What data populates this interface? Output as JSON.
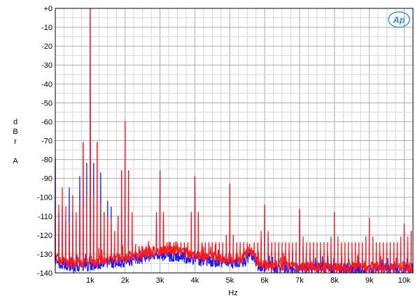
{
  "chart_data": {
    "type": "line",
    "title": "",
    "xlabel": "Hz",
    "ylabel_letters": [
      "d",
      "B",
      "r",
      "",
      "A"
    ],
    "xlim": [
      0,
      10250
    ],
    "ylim": [
      -140,
      0
    ],
    "grid": true,
    "legend": "none",
    "logo_text": "Ap",
    "y_ticks": [
      {
        "value": 0,
        "label": "+0"
      },
      {
        "value": -10,
        "label": "-10"
      },
      {
        "value": -20,
        "label": "-20"
      },
      {
        "value": -30,
        "label": "-30"
      },
      {
        "value": -40,
        "label": "-40"
      },
      {
        "value": -50,
        "label": "-50"
      },
      {
        "value": -60,
        "label": "-60"
      },
      {
        "value": -70,
        "label": "-70"
      },
      {
        "value": -80,
        "label": "-80"
      },
      {
        "value": -90,
        "label": "-90"
      },
      {
        "value": -100,
        "label": "-100"
      },
      {
        "value": -110,
        "label": "-110"
      },
      {
        "value": -120,
        "label": "-120"
      },
      {
        "value": -130,
        "label": "-130"
      },
      {
        "value": -140,
        "label": "-140"
      }
    ],
    "x_ticks": [
      {
        "value": 1000,
        "label": "1k"
      },
      {
        "value": 2000,
        "label": "2k"
      },
      {
        "value": 3000,
        "label": "3k"
      },
      {
        "value": 4000,
        "label": "4k"
      },
      {
        "value": 5000,
        "label": "5k"
      },
      {
        "value": 6000,
        "label": "6k"
      },
      {
        "value": 7000,
        "label": "7k"
      },
      {
        "value": 8000,
        "label": "8k"
      },
      {
        "value": 9000,
        "label": "9k"
      },
      {
        "value": 10000,
        "label": "10k"
      }
    ],
    "series": [
      {
        "color": "#1a1aff",
        "floor": [
          [
            0,
            -134
          ],
          [
            300,
            -136
          ],
          [
            600,
            -137
          ],
          [
            1000,
            -136
          ],
          [
            1500,
            -135
          ],
          [
            2000,
            -134
          ],
          [
            2500,
            -132
          ],
          [
            3000,
            -131
          ],
          [
            3500,
            -131
          ],
          [
            4000,
            -133
          ],
          [
            4500,
            -134
          ],
          [
            5000,
            -135
          ],
          [
            5400,
            -135
          ],
          [
            5600,
            -129
          ],
          [
            5800,
            -136
          ],
          [
            6000,
            -137
          ],
          [
            7000,
            -138
          ],
          [
            8000,
            -138
          ],
          [
            9000,
            -138
          ],
          [
            10250,
            -138
          ]
        ],
        "peaks": [
          [
            0,
            -80
          ],
          [
            100,
            -108
          ],
          [
            200,
            -105
          ],
          [
            300,
            -112
          ],
          [
            400,
            -95
          ],
          [
            500,
            -108
          ],
          [
            600,
            -112
          ],
          [
            700,
            -89
          ],
          [
            800,
            -71
          ],
          [
            900,
            -82
          ],
          [
            1000,
            0
          ],
          [
            1100,
            -82
          ],
          [
            1200,
            -71
          ],
          [
            1300,
            -87
          ],
          [
            1400,
            -108
          ],
          [
            1500,
            -102
          ],
          [
            1600,
            -105
          ],
          [
            1700,
            -122
          ],
          [
            1800,
            -110
          ],
          [
            1900,
            -86
          ],
          [
            2000,
            -60
          ],
          [
            2100,
            -86
          ],
          [
            2200,
            -110
          ],
          [
            2300,
            -125
          ],
          [
            2400,
            -126
          ],
          [
            2500,
            -126
          ],
          [
            2600,
            -126
          ],
          [
            2700,
            -126
          ],
          [
            2800,
            -126
          ],
          [
            2900,
            -112
          ],
          [
            3000,
            -86
          ],
          [
            3100,
            -112
          ],
          [
            3200,
            -127
          ],
          [
            3300,
            -127
          ],
          [
            3400,
            -127
          ],
          [
            3500,
            -127
          ],
          [
            3600,
            -127
          ],
          [
            3700,
            -126
          ],
          [
            3800,
            -126
          ],
          [
            3900,
            -108
          ],
          [
            4000,
            -89
          ],
          [
            4100,
            -108
          ],
          [
            4200,
            -127
          ],
          [
            4300,
            -127
          ],
          [
            4400,
            -127
          ],
          [
            4500,
            -127
          ],
          [
            4600,
            -127
          ],
          [
            4700,
            -127
          ],
          [
            4800,
            -128
          ],
          [
            4900,
            -122
          ],
          [
            5000,
            -93
          ],
          [
            5100,
            -122
          ],
          [
            5200,
            -128
          ],
          [
            5300,
            -128
          ],
          [
            5400,
            -128
          ],
          [
            5500,
            -128
          ],
          [
            5700,
            -128
          ],
          [
            5800,
            -128
          ],
          [
            5900,
            -122
          ],
          [
            6000,
            -105
          ],
          [
            6100,
            -122
          ],
          [
            6200,
            -128
          ],
          [
            6300,
            -128
          ],
          [
            6400,
            -128
          ],
          [
            6500,
            -128
          ],
          [
            6600,
            -128
          ],
          [
            6700,
            -128
          ],
          [
            6800,
            -128
          ],
          [
            6900,
            -128
          ],
          [
            7000,
            -107
          ],
          [
            7100,
            -126
          ],
          [
            7200,
            -128
          ],
          [
            7300,
            -128
          ],
          [
            7400,
            -128
          ],
          [
            7500,
            -128
          ],
          [
            7600,
            -128
          ],
          [
            7700,
            -128
          ],
          [
            7800,
            -128
          ],
          [
            7900,
            -126
          ],
          [
            8000,
            -108
          ],
          [
            8100,
            -126
          ],
          [
            8200,
            -128
          ],
          [
            8300,
            -128
          ],
          [
            8400,
            -128
          ],
          [
            8500,
            -128
          ],
          [
            8600,
            -128
          ],
          [
            8700,
            -128
          ],
          [
            8800,
            -128
          ],
          [
            8900,
            -126
          ],
          [
            9000,
            -112
          ],
          [
            9100,
            -126
          ],
          [
            9200,
            -128
          ],
          [
            9300,
            -128
          ],
          [
            9400,
            -128
          ],
          [
            9500,
            -128
          ],
          [
            9600,
            -128
          ],
          [
            9700,
            -128
          ],
          [
            9800,
            -128
          ],
          [
            9900,
            -126
          ],
          [
            10000,
            -115
          ],
          [
            10100,
            -126
          ],
          [
            10200,
            -118
          ]
        ]
      },
      {
        "color": "#ff1a1a",
        "floor": [
          [
            0,
            -132
          ],
          [
            300,
            -134
          ],
          [
            600,
            -135
          ],
          [
            1000,
            -134
          ],
          [
            1500,
            -133
          ],
          [
            2000,
            -132
          ],
          [
            2500,
            -130
          ],
          [
            3000,
            -128
          ],
          [
            3500,
            -129
          ],
          [
            4000,
            -131
          ],
          [
            4500,
            -132
          ],
          [
            5000,
            -133
          ],
          [
            5400,
            -132
          ],
          [
            5600,
            -127
          ],
          [
            5800,
            -134
          ],
          [
            6000,
            -136
          ],
          [
            7000,
            -137
          ],
          [
            8000,
            -137
          ],
          [
            9000,
            -137
          ],
          [
            10250,
            -137
          ]
        ],
        "peaks": [
          [
            0,
            -79
          ],
          [
            100,
            -104
          ],
          [
            200,
            -95
          ],
          [
            300,
            -105
          ],
          [
            400,
            -113
          ],
          [
            500,
            -99
          ],
          [
            600,
            -108
          ],
          [
            700,
            -103
          ],
          [
            800,
            -71
          ],
          [
            900,
            -99
          ],
          [
            1000,
            0
          ],
          [
            1100,
            -99
          ],
          [
            1200,
            -71
          ],
          [
            1300,
            -103
          ],
          [
            1400,
            -108
          ],
          [
            1500,
            -110
          ],
          [
            1600,
            -111
          ],
          [
            1700,
            -118
          ],
          [
            1800,
            -110
          ],
          [
            1900,
            -86
          ],
          [
            2000,
            -60
          ],
          [
            2100,
            -86
          ],
          [
            2200,
            -108
          ],
          [
            2300,
            -125
          ],
          [
            2400,
            -126
          ],
          [
            2500,
            -126
          ],
          [
            2600,
            -126
          ],
          [
            2700,
            -126
          ],
          [
            2800,
            -126
          ],
          [
            2900,
            -108
          ],
          [
            3000,
            -86
          ],
          [
            3100,
            -108
          ],
          [
            3200,
            -124
          ],
          [
            3300,
            -124
          ],
          [
            3400,
            -124
          ],
          [
            3500,
            -124
          ],
          [
            3600,
            -124
          ],
          [
            3700,
            -124
          ],
          [
            3800,
            -124
          ],
          [
            3900,
            -108
          ],
          [
            4000,
            -90
          ],
          [
            4100,
            -108
          ],
          [
            4200,
            -124
          ],
          [
            4300,
            -124
          ],
          [
            4400,
            -124
          ],
          [
            4500,
            -124
          ],
          [
            4600,
            -124
          ],
          [
            4700,
            -124
          ],
          [
            4800,
            -124
          ],
          [
            4900,
            -120
          ],
          [
            5000,
            -94
          ],
          [
            5100,
            -120
          ],
          [
            5200,
            -124
          ],
          [
            5300,
            -124
          ],
          [
            5400,
            -124
          ],
          [
            5500,
            -124
          ],
          [
            5700,
            -124
          ],
          [
            5800,
            -124
          ],
          [
            5900,
            -118
          ],
          [
            6000,
            -104
          ],
          [
            6100,
            -118
          ],
          [
            6200,
            -124
          ],
          [
            6300,
            -124
          ],
          [
            6400,
            -124
          ],
          [
            6500,
            -124
          ],
          [
            6600,
            -124
          ],
          [
            6700,
            -124
          ],
          [
            6800,
            -124
          ],
          [
            6900,
            -124
          ],
          [
            7000,
            -106
          ],
          [
            7100,
            -121
          ],
          [
            7200,
            -124
          ],
          [
            7300,
            -124
          ],
          [
            7400,
            -124
          ],
          [
            7500,
            -124
          ],
          [
            7600,
            -124
          ],
          [
            7700,
            -124
          ],
          [
            7800,
            -124
          ],
          [
            7900,
            -121
          ],
          [
            8000,
            -108
          ],
          [
            8100,
            -121
          ],
          [
            8200,
            -124
          ],
          [
            8300,
            -124
          ],
          [
            8400,
            -124
          ],
          [
            8500,
            -124
          ],
          [
            8600,
            -124
          ],
          [
            8700,
            -124
          ],
          [
            8800,
            -124
          ],
          [
            8900,
            -121
          ],
          [
            9000,
            -111
          ],
          [
            9100,
            -121
          ],
          [
            9200,
            -124
          ],
          [
            9300,
            -124
          ],
          [
            9400,
            -124
          ],
          [
            9500,
            -124
          ],
          [
            9600,
            -124
          ],
          [
            9700,
            -124
          ],
          [
            9800,
            -124
          ],
          [
            9900,
            -121
          ],
          [
            10000,
            -114
          ],
          [
            10100,
            -121
          ],
          [
            10200,
            -118
          ]
        ]
      }
    ]
  }
}
